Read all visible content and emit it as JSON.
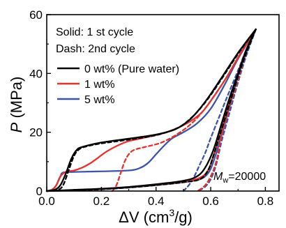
{
  "chart_data": {
    "type": "line",
    "xlabel_symbol": "ΔV",
    "xlabel_unit": "(cm",
    "xlabel_unit_exp": "3",
    "xlabel_unit_tail": "/g)",
    "ylabel_symbol": "P",
    "ylabel_unit": "(MPa)",
    "xlim": [
      0.0,
      0.85
    ],
    "ylim": [
      0,
      60
    ],
    "xticks": [
      0.0,
      0.2,
      0.4,
      0.6,
      0.8
    ],
    "xtick_labels": [
      "0.0",
      "0.2",
      "0.4",
      "0.6",
      "0.8"
    ],
    "yticks": [
      0,
      20,
      40,
      60
    ],
    "ytick_labels": [
      "0",
      "20",
      "40",
      "60"
    ],
    "notes": [
      "Solid: 1 st cycle",
      "Dash: 2nd cycle"
    ],
    "legend_placement": "top-left",
    "annotation": {
      "symbol": "M",
      "sub": "w",
      "text": "=20000"
    },
    "series": [
      {
        "name": "0 wt% (Pure water)",
        "color": "#000000",
        "cycle1_loading": [
          [
            0.0,
            0
          ],
          [
            0.03,
            0.5
          ],
          [
            0.05,
            2
          ],
          [
            0.07,
            6
          ],
          [
            0.09,
            11
          ],
          [
            0.11,
            14
          ],
          [
            0.13,
            15
          ],
          [
            0.2,
            16.5
          ],
          [
            0.3,
            17.8
          ],
          [
            0.4,
            19.2
          ],
          [
            0.47,
            21
          ],
          [
            0.52,
            24
          ],
          [
            0.56,
            28
          ],
          [
            0.6,
            33
          ],
          [
            0.65,
            40
          ],
          [
            0.7,
            47
          ],
          [
            0.74,
            52
          ],
          [
            0.765,
            55
          ]
        ],
        "cycle1_unloading": [
          [
            0.765,
            55
          ],
          [
            0.73,
            48
          ],
          [
            0.7,
            40
          ],
          [
            0.67,
            32
          ],
          [
            0.64,
            23
          ],
          [
            0.61,
            14
          ],
          [
            0.58,
            8
          ],
          [
            0.55,
            5
          ],
          [
            0.5,
            3.5
          ],
          [
            0.4,
            2.3
          ],
          [
            0.3,
            1.4
          ],
          [
            0.2,
            0.8
          ],
          [
            0.1,
            0.4
          ],
          [
            0.0,
            0
          ]
        ],
        "cycle2_loading": [
          [
            0.0,
            0
          ],
          [
            0.04,
            0.4
          ],
          [
            0.06,
            2
          ],
          [
            0.08,
            7
          ],
          [
            0.1,
            12
          ],
          [
            0.12,
            14.3
          ],
          [
            0.15,
            15.3
          ],
          [
            0.2,
            16.2
          ],
          [
            0.3,
            17.5
          ],
          [
            0.4,
            19
          ],
          [
            0.48,
            21.5
          ],
          [
            0.53,
            25
          ],
          [
            0.57,
            29
          ],
          [
            0.61,
            34
          ],
          [
            0.66,
            41
          ],
          [
            0.71,
            48
          ],
          [
            0.765,
            55
          ]
        ],
        "cycle2_unloading": [
          [
            0.765,
            55
          ],
          [
            0.73,
            47
          ],
          [
            0.7,
            39
          ],
          [
            0.67,
            30
          ],
          [
            0.64,
            21
          ],
          [
            0.61,
            12
          ],
          [
            0.59,
            7
          ],
          [
            0.56,
            4
          ],
          [
            0.5,
            3
          ],
          [
            0.4,
            2
          ],
          [
            0.3,
            1.2
          ],
          [
            0.2,
            0.6
          ],
          [
            0.1,
            0.3
          ],
          [
            0.0,
            0
          ]
        ]
      },
      {
        "name": "1 wt%",
        "color": "#e8302c",
        "cycle1_loading": [
          [
            0.0,
            0
          ],
          [
            0.02,
            0.5
          ],
          [
            0.035,
            2
          ],
          [
            0.05,
            5
          ],
          [
            0.07,
            6.5
          ],
          [
            0.1,
            7
          ],
          [
            0.13,
            8
          ],
          [
            0.16,
            9.5
          ],
          [
            0.19,
            11.5
          ],
          [
            0.22,
            13.5
          ],
          [
            0.26,
            15.5
          ],
          [
            0.3,
            17
          ],
          [
            0.35,
            18
          ],
          [
            0.42,
            19.5
          ],
          [
            0.48,
            21.5
          ],
          [
            0.53,
            24
          ],
          [
            0.57,
            27
          ],
          [
            0.61,
            32
          ],
          [
            0.66,
            39
          ],
          [
            0.71,
            47
          ],
          [
            0.765,
            55
          ]
        ],
        "cycle1_unloading": [
          [
            0.765,
            55
          ],
          [
            0.73,
            48
          ],
          [
            0.7,
            40
          ],
          [
            0.67,
            31
          ],
          [
            0.64,
            21
          ],
          [
            0.61,
            12
          ],
          [
            0.59,
            7
          ],
          [
            0.56,
            4.5
          ],
          [
            0.5,
            3.2
          ],
          [
            0.4,
            2.1
          ],
          [
            0.3,
            1.3
          ],
          [
            0.2,
            0.7
          ],
          [
            0.1,
            0.3
          ],
          [
            0.0,
            0
          ]
        ],
        "cycle2_loading": [
          [
            0.24,
            0
          ],
          [
            0.255,
            2
          ],
          [
            0.27,
            6
          ],
          [
            0.285,
            10
          ],
          [
            0.3,
            12.5
          ],
          [
            0.32,
            14
          ],
          [
            0.36,
            15
          ],
          [
            0.42,
            16.5
          ],
          [
            0.48,
            19.5
          ],
          [
            0.53,
            23
          ],
          [
            0.57,
            27
          ],
          [
            0.61,
            32
          ],
          [
            0.66,
            39
          ],
          [
            0.71,
            47
          ],
          [
            0.765,
            55
          ]
        ],
        "cycle2_unloading": [
          [
            0.765,
            55
          ],
          [
            0.73,
            47
          ],
          [
            0.7,
            38
          ],
          [
            0.67,
            29
          ],
          [
            0.64,
            19
          ],
          [
            0.62,
            10
          ],
          [
            0.6,
            5
          ],
          [
            0.58,
            2
          ],
          [
            0.56,
            0.5
          ],
          [
            0.55,
            0
          ]
        ]
      },
      {
        "name": "5 wt%",
        "color": "#3c55a8",
        "cycle1_loading": [
          [
            0.0,
            0
          ],
          [
            0.02,
            0.5
          ],
          [
            0.035,
            2
          ],
          [
            0.05,
            5
          ],
          [
            0.06,
            6.3
          ],
          [
            0.1,
            6.5
          ],
          [
            0.2,
            6.7
          ],
          [
            0.3,
            7
          ],
          [
            0.34,
            7.8
          ],
          [
            0.37,
            9.5
          ],
          [
            0.4,
            12.5
          ],
          [
            0.43,
            15.5
          ],
          [
            0.46,
            18
          ],
          [
            0.5,
            20
          ],
          [
            0.55,
            23
          ],
          [
            0.6,
            28
          ],
          [
            0.65,
            36
          ],
          [
            0.7,
            45
          ],
          [
            0.765,
            55
          ]
        ],
        "cycle1_unloading": [
          [
            0.765,
            55
          ],
          [
            0.73,
            47
          ],
          [
            0.7,
            39
          ],
          [
            0.67,
            29
          ],
          [
            0.64,
            19
          ],
          [
            0.61,
            10
          ],
          [
            0.59,
            6
          ],
          [
            0.56,
            4
          ],
          [
            0.5,
            3
          ],
          [
            0.4,
            2
          ],
          [
            0.3,
            1.2
          ],
          [
            0.2,
            0.6
          ],
          [
            0.1,
            0.2
          ],
          [
            0.0,
            0
          ]
        ],
        "cycle2_loading": [
          [
            0.5,
            0
          ],
          [
            0.52,
            2
          ],
          [
            0.54,
            5
          ],
          [
            0.56,
            9
          ],
          [
            0.58,
            13
          ],
          [
            0.6,
            18
          ],
          [
            0.63,
            25
          ],
          [
            0.66,
            32
          ],
          [
            0.7,
            41
          ],
          [
            0.73,
            48
          ],
          [
            0.765,
            55
          ]
        ],
        "cycle2_unloading": [
          [
            0.765,
            55
          ],
          [
            0.73,
            46
          ],
          [
            0.7,
            37
          ],
          [
            0.67,
            27
          ],
          [
            0.64,
            17
          ],
          [
            0.62,
            9
          ],
          [
            0.6,
            4
          ],
          [
            0.58,
            1.5
          ],
          [
            0.56,
            0.3
          ],
          [
            0.55,
            0
          ]
        ]
      }
    ]
  }
}
